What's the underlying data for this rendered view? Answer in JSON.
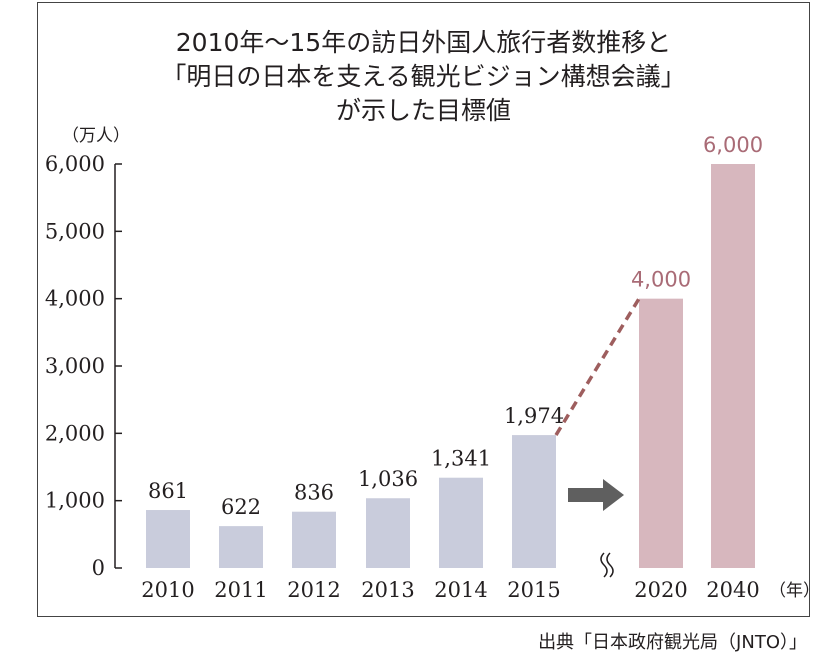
{
  "title_lines": [
    "2010年〜15年の訪日外国人旅行者数推移と",
    "「明日の日本を支える観光ビジョン構想会議」",
    "が示した目標値"
  ],
  "source": "出典「日本政府観光局（JNTO）」",
  "chart_data": {
    "type": "bar",
    "title": "2010年〜15年の訪日外国人旅行者数推移と「明日の日本を支える観光ビジョン構想会議」が示した目標値",
    "xlabel": "（年）",
    "ylabel": "（万人）",
    "ylim": [
      0,
      6000
    ],
    "yticks": [
      0,
      1000,
      2000,
      3000,
      4000,
      5000,
      6000
    ],
    "ytick_labels": [
      "0",
      "1,000",
      "2,000",
      "3,000",
      "4,000",
      "5,000",
      "6,000"
    ],
    "grid": false,
    "series": [
      {
        "categories": [
          "2010",
          "2011",
          "2012",
          "2013",
          "2014",
          "2015"
        ],
        "values": [
          861,
          622,
          836,
          1036,
          1341,
          1974
        ],
        "labels": [
          "861",
          "622",
          "836",
          "1,036",
          "1,341",
          "1,974"
        ],
        "color": "#c9ccdc"
      },
      {
        "categories": [
          "2020",
          "2040"
        ],
        "values": [
          4000,
          6000
        ],
        "labels": [
          "4,000",
          "6,000"
        ],
        "color": "#d7b7be",
        "label_color": "#a96b76"
      }
    ],
    "trend_line": {
      "from": "2015",
      "to": "2020",
      "style": "dashed",
      "color": "#9e5e5e"
    },
    "arrow_color": "#5f5f5f",
    "axis_break": "between 2015 and 2020"
  }
}
